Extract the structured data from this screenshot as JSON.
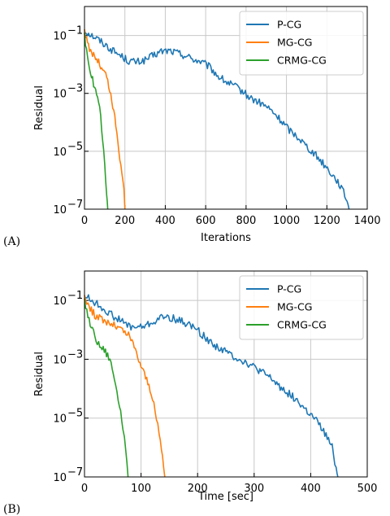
{
  "chart_data": [
    {
      "type": "line",
      "panel_label": "(A)",
      "xlabel": "Iterations",
      "ylabel": "Residual",
      "xlim": [
        0,
        1400
      ],
      "ylim": [
        1e-07,
        1
      ],
      "yscale": "log",
      "grid": true,
      "legend_position": "top-right",
      "xticks": [
        "0",
        "200",
        "400",
        "600",
        "800",
        "1000",
        "1200",
        "1400"
      ],
      "yticks": [
        {
          "base": "10",
          "exp": "−1",
          "value": 0.1
        },
        {
          "base": "10",
          "exp": "−3",
          "value": 0.001
        },
        {
          "base": "10",
          "exp": "−5",
          "value": 1e-05
        },
        {
          "base": "10",
          "exp": "−7",
          "value": 1e-07
        }
      ],
      "series": [
        {
          "name": "P-CG",
          "color": "#1f77b4",
          "noisy": true,
          "points": [
            [
              0,
              0.15
            ],
            [
              20,
              0.12
            ],
            [
              60,
              0.08
            ],
            [
              100,
              0.05
            ],
            [
              140,
              0.03
            ],
            [
              180,
              0.02
            ],
            [
              220,
              0.013
            ],
            [
              260,
              0.012
            ],
            [
              300,
              0.014
            ],
            [
              340,
              0.02
            ],
            [
              380,
              0.028
            ],
            [
              420,
              0.03
            ],
            [
              460,
              0.025
            ],
            [
              500,
              0.02
            ],
            [
              540,
              0.015
            ],
            [
              580,
              0.012
            ],
            [
              620,
              0.008
            ],
            [
              660,
              0.004
            ],
            [
              700,
              0.0025
            ],
            [
              740,
              0.0018
            ],
            [
              780,
              0.0012
            ],
            [
              820,
              0.0007
            ],
            [
              860,
              0.0005
            ],
            [
              900,
              0.00035
            ],
            [
              940,
              0.0002
            ],
            [
              980,
              0.0001
            ],
            [
              1020,
              5e-05
            ],
            [
              1060,
              3e-05
            ],
            [
              1100,
              1.5e-05
            ],
            [
              1140,
              8e-06
            ],
            [
              1180,
              4e-06
            ],
            [
              1220,
              1.8e-06
            ],
            [
              1260,
              8e-07
            ],
            [
              1300,
              2e-07
            ],
            [
              1310,
              1e-07
            ]
          ]
        },
        {
          "name": "MG-CG",
          "color": "#ff7f0e",
          "noisy": true,
          "points": [
            [
              0,
              0.15
            ],
            [
              15,
              0.05
            ],
            [
              30,
              0.03
            ],
            [
              50,
              0.02
            ],
            [
              70,
              0.012
            ],
            [
              90,
              0.006
            ],
            [
              110,
              0.004
            ],
            [
              130,
              0.0008
            ],
            [
              150,
              0.00015
            ],
            [
              165,
              2e-05
            ],
            [
              175,
              6e-06
            ],
            [
              185,
              2e-06
            ],
            [
              195,
              5e-07
            ],
            [
              200,
              1e-07
            ]
          ]
        },
        {
          "name": "CRMG-CG",
          "color": "#2ca02c",
          "noisy": true,
          "points": [
            [
              0,
              0.1
            ],
            [
              15,
              0.02
            ],
            [
              30,
              0.006
            ],
            [
              45,
              0.002
            ],
            [
              60,
              0.001
            ],
            [
              75,
              0.0003
            ],
            [
              90,
              3e-05
            ],
            [
              100,
              3e-06
            ],
            [
              110,
              3e-07
            ],
            [
              115,
              1e-07
            ]
          ]
        }
      ]
    },
    {
      "type": "line",
      "panel_label": "(B)",
      "xlabel": "Time [sec]",
      "ylabel": "Residual",
      "xlim": [
        0,
        500
      ],
      "ylim": [
        1e-07,
        1
      ],
      "yscale": "log",
      "grid": true,
      "legend_position": "top-right",
      "xticks": [
        "0",
        "100",
        "200",
        "300",
        "400",
        "500"
      ],
      "yticks": [
        {
          "base": "10",
          "exp": "−1",
          "value": 0.1
        },
        {
          "base": "10",
          "exp": "−3",
          "value": 0.001
        },
        {
          "base": "10",
          "exp": "−5",
          "value": 1e-05
        },
        {
          "base": "10",
          "exp": "−7",
          "value": 1e-07
        }
      ],
      "series": [
        {
          "name": "P-CG",
          "color": "#1f77b4",
          "noisy": true,
          "points": [
            [
              0,
              0.15
            ],
            [
              7,
              0.12
            ],
            [
              20,
              0.08
            ],
            [
              35,
              0.05
            ],
            [
              50,
              0.03
            ],
            [
              65,
              0.02
            ],
            [
              80,
              0.013
            ],
            [
              95,
              0.012
            ],
            [
              110,
              0.014
            ],
            [
              125,
              0.02
            ],
            [
              140,
              0.028
            ],
            [
              155,
              0.025
            ],
            [
              170,
              0.02
            ],
            [
              185,
              0.015
            ],
            [
              200,
              0.01
            ],
            [
              215,
              0.005
            ],
            [
              230,
              0.003
            ],
            [
              250,
              0.0018
            ],
            [
              270,
              0.0011
            ],
            [
              290,
              0.0007
            ],
            [
              310,
              0.0004
            ],
            [
              330,
              0.00022
            ],
            [
              350,
              0.0001
            ],
            [
              370,
              5e-05
            ],
            [
              390,
              2e-05
            ],
            [
              410,
              8e-06
            ],
            [
              425,
              3e-06
            ],
            [
              438,
              1e-06
            ],
            [
              445,
              2e-07
            ],
            [
              448,
              1e-07
            ]
          ]
        },
        {
          "name": "MG-CG",
          "color": "#ff7f0e",
          "noisy": true,
          "points": [
            [
              0,
              0.15
            ],
            [
              10,
              0.05
            ],
            [
              20,
              0.03
            ],
            [
              35,
              0.02
            ],
            [
              50,
              0.015
            ],
            [
              65,
              0.01
            ],
            [
              80,
              0.006
            ],
            [
              90,
              0.002
            ],
            [
              100,
              0.0006
            ],
            [
              110,
              0.0002
            ],
            [
              118,
              8e-05
            ],
            [
              125,
              1.5e-05
            ],
            [
              132,
              3e-06
            ],
            [
              138,
              5e-07
            ],
            [
              142,
              1e-07
            ]
          ]
        },
        {
          "name": "CRMG-CG",
          "color": "#2ca02c",
          "noisy": true,
          "points": [
            [
              0,
              0.1
            ],
            [
              8,
              0.02
            ],
            [
              16,
              0.008
            ],
            [
              25,
              0.003
            ],
            [
              35,
              0.002
            ],
            [
              45,
              0.001
            ],
            [
              55,
              0.00015
            ],
            [
              62,
              3e-05
            ],
            [
              68,
              5e-06
            ],
            [
              73,
              8e-07
            ],
            [
              77,
              1e-07
            ]
          ]
        }
      ]
    }
  ]
}
